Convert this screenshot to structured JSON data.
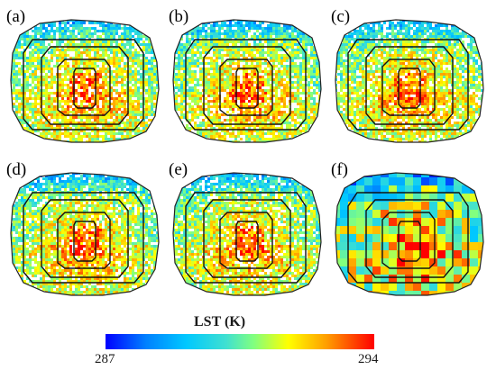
{
  "panels": [
    {
      "label": "(a)",
      "style": "fine"
    },
    {
      "label": "(b)",
      "style": "fine"
    },
    {
      "label": "(c)",
      "style": "fine"
    },
    {
      "label": "(d)",
      "style": "fine"
    },
    {
      "label": "(e)",
      "style": "fine"
    },
    {
      "label": "(f)",
      "style": "coarse"
    }
  ],
  "legend": {
    "title": "LST (K)",
    "min": "287",
    "max": "294"
  },
  "colors": {
    "cold": "#0000ff",
    "mid": "#80ff80",
    "hot": "#ff0000"
  }
}
